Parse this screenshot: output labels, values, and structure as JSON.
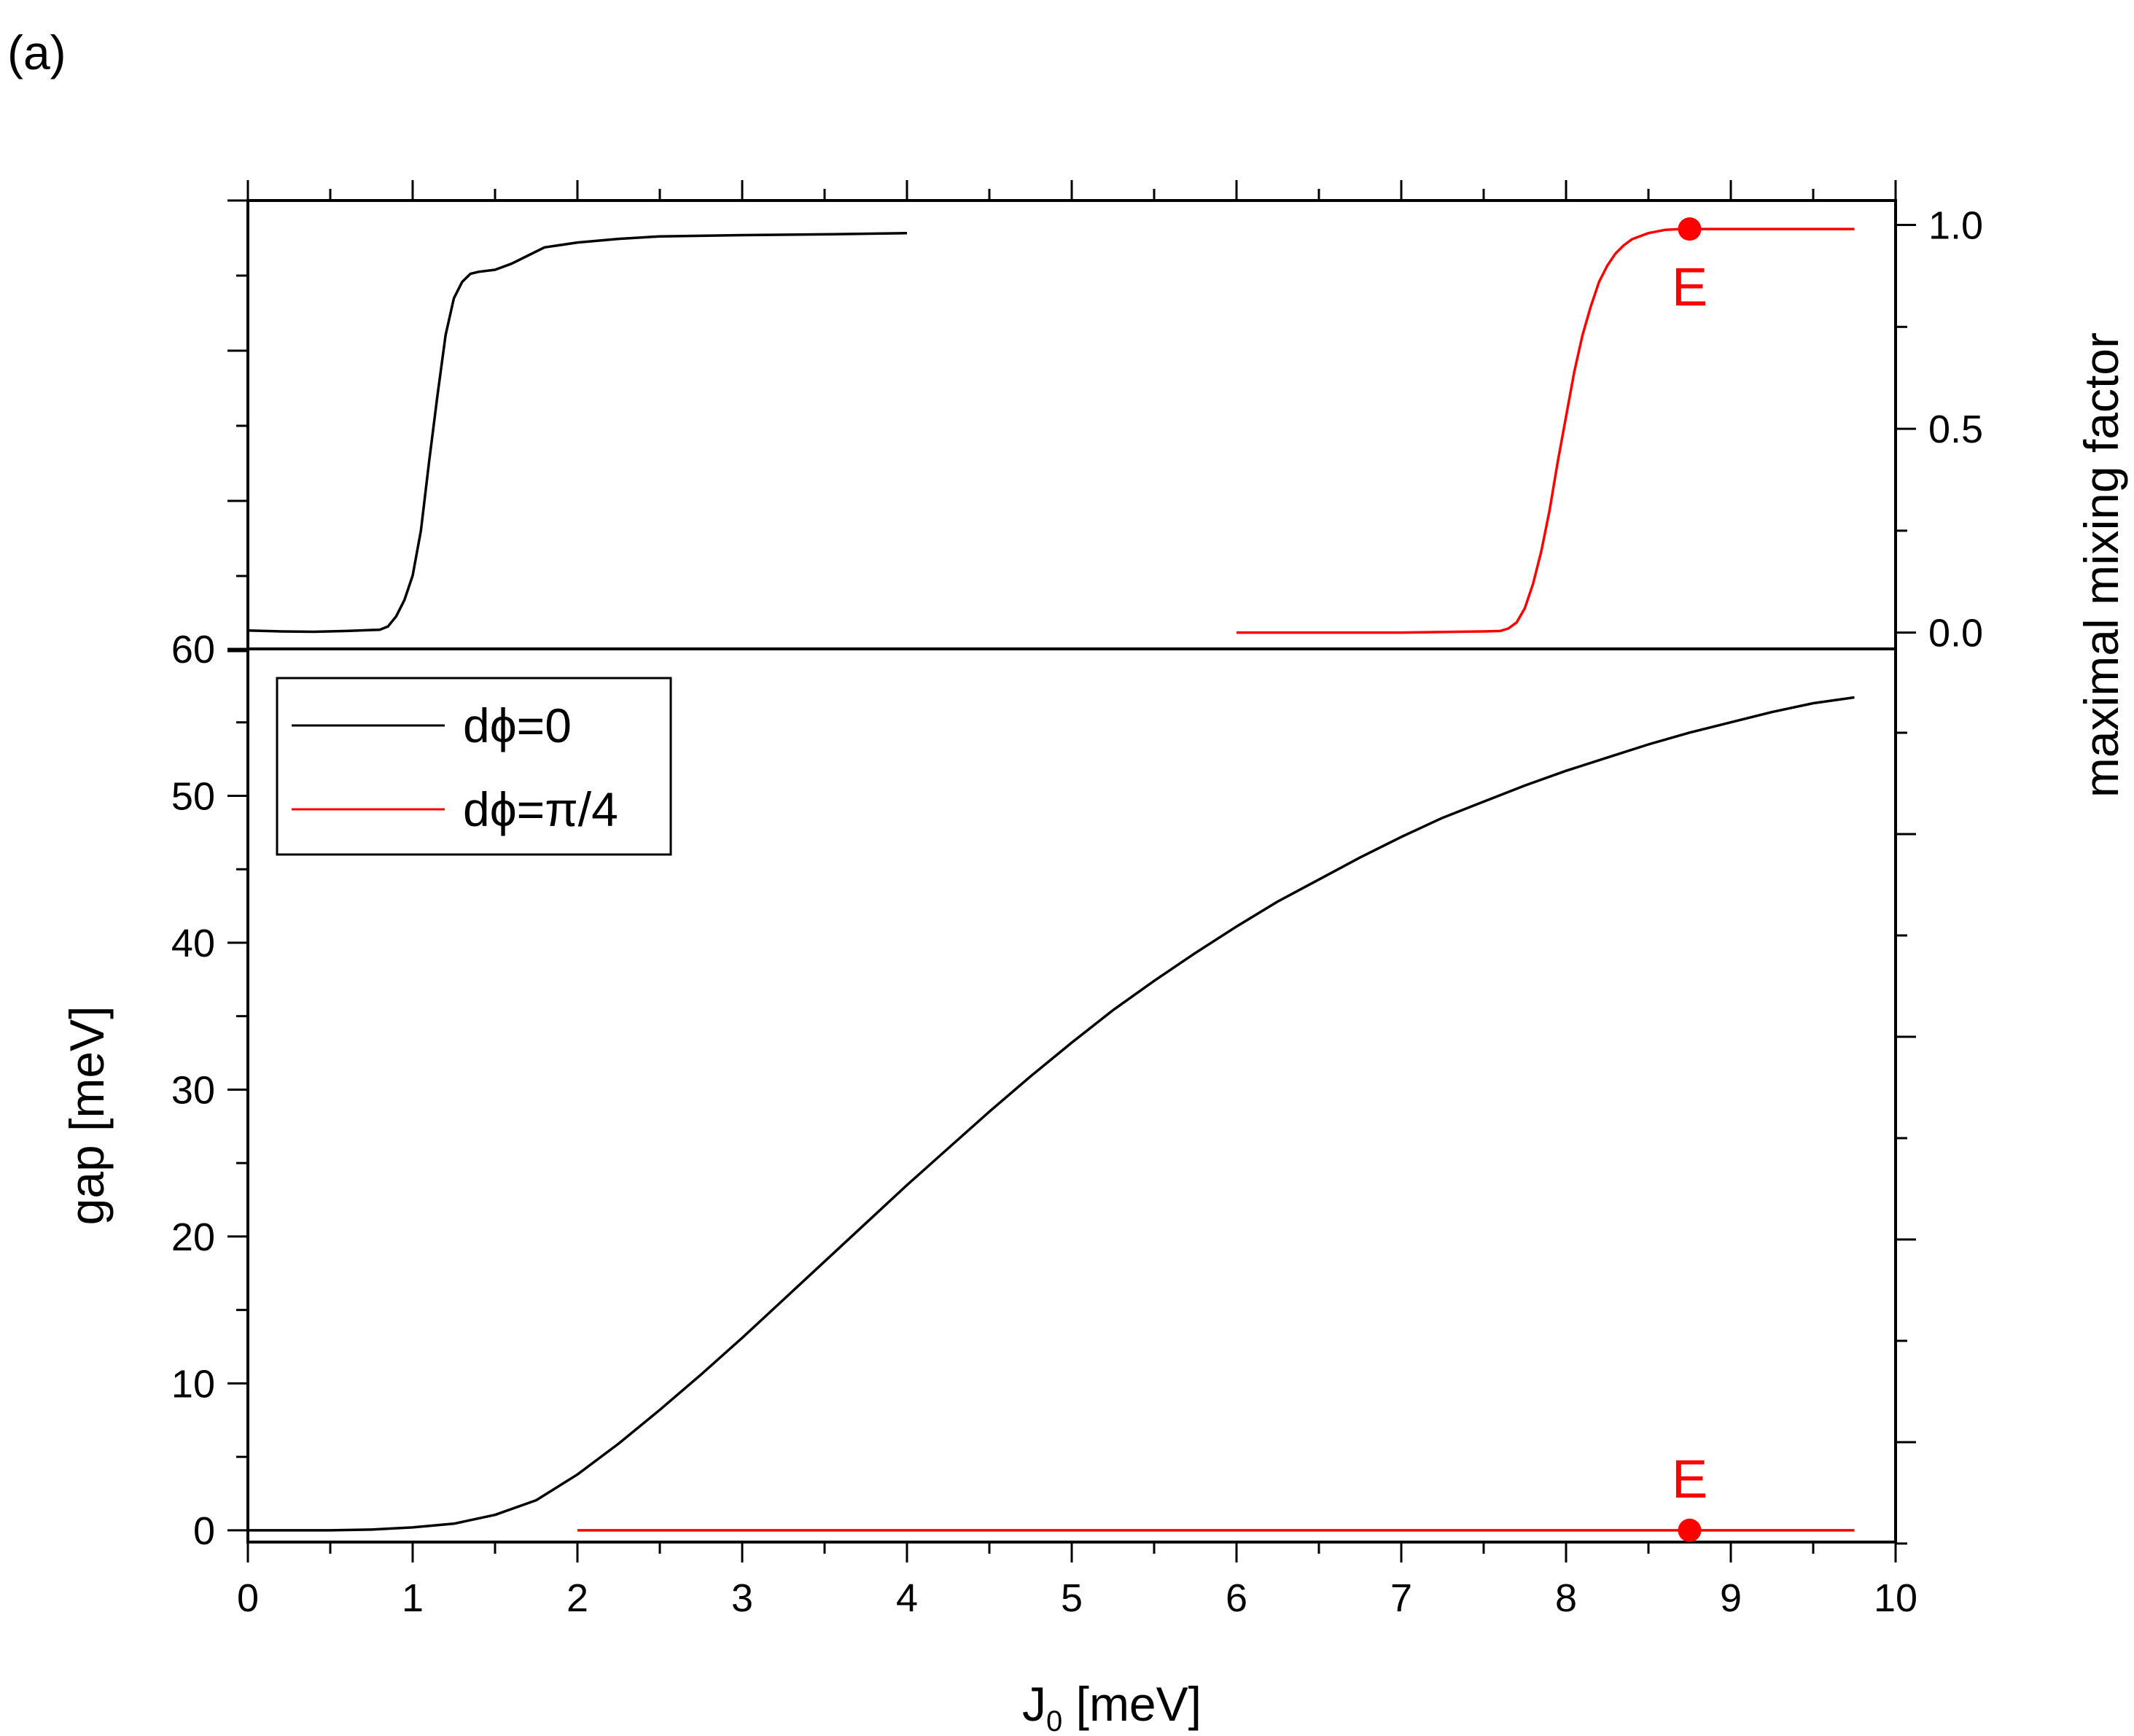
{
  "panel_label": "(a)",
  "colors": {
    "black": "#000000",
    "red": "#ff0000"
  },
  "chart_data": {
    "type": "line",
    "x_axis": {
      "label_main": "J",
      "label_sub": "0",
      "label_rest": " [meV]",
      "range": [
        0,
        10
      ],
      "ticks": [
        0,
        1,
        2,
        3,
        4,
        5,
        6,
        7,
        8,
        9,
        10
      ],
      "tick_labels": [
        "0",
        "1",
        "2",
        "3",
        "4",
        "5",
        "6",
        "7",
        "8",
        "9",
        "10"
      ]
    },
    "left_axis": {
      "label": "gap [meV]",
      "range": [
        -0.8,
        60
      ],
      "ticks": [
        0,
        10,
        20,
        30,
        40,
        50,
        60
      ],
      "tick_labels": [
        "0",
        "10",
        "20",
        "30",
        "40",
        "50",
        "60"
      ]
    },
    "right_axis": {
      "label": "maximal mixing factor",
      "range": [
        -0.04,
        1.06
      ],
      "ticks": [
        0.0,
        0.5,
        1.0
      ],
      "tick_labels": [
        "0.0",
        "0.5",
        "1.0"
      ]
    },
    "legend": {
      "position": "top-left",
      "entries": [
        {
          "label": "dϕ=0",
          "color": "#000000"
        },
        {
          "label": "dϕ=π/4",
          "color": "#ff0000"
        }
      ]
    },
    "series": [
      {
        "label": "dϕ=0",
        "panel": "bottom",
        "color": "#000000",
        "x": [
          0,
          0.25,
          0.5,
          0.75,
          1.0,
          1.25,
          1.5,
          1.75,
          2.0,
          2.25,
          2.5,
          2.75,
          3.0,
          3.25,
          3.5,
          3.75,
          4.0,
          4.25,
          4.5,
          4.75,
          5.0,
          5.25,
          5.5,
          5.75,
          6.0,
          6.25,
          6.5,
          6.75,
          7.0,
          7.25,
          7.5,
          7.75,
          8.0,
          8.25,
          8.5,
          8.75,
          9.0,
          9.25,
          9.5,
          9.75
        ],
        "y": [
          0.0,
          0.0,
          0.0,
          0.05,
          0.2,
          0.45,
          1.05,
          2.05,
          3.8,
          5.9,
          8.2,
          10.6,
          13.1,
          15.7,
          18.3,
          20.9,
          23.5,
          26.0,
          28.5,
          30.9,
          33.2,
          35.4,
          37.4,
          39.3,
          41.1,
          42.8,
          44.3,
          45.8,
          47.2,
          48.5,
          49.6,
          50.7,
          51.7,
          52.6,
          53.5,
          54.3,
          55.0,
          55.7,
          56.3,
          56.7
        ]
      },
      {
        "label": "dϕ=π/4",
        "panel": "bottom",
        "color": "#ff0000",
        "x": [
          2.0,
          9.75
        ],
        "y": [
          0.0,
          0.0
        ]
      },
      {
        "label": "dϕ=0",
        "panel": "top",
        "color": "#000000",
        "x": [
          0,
          0.2,
          0.4,
          0.6,
          0.8,
          0.85,
          0.9,
          0.95,
          1.0,
          1.05,
          1.1,
          1.15,
          1.2,
          1.25,
          1.3,
          1.35,
          1.4,
          1.5,
          1.6,
          1.7,
          1.8,
          2.0,
          2.25,
          2.5,
          3.0,
          3.5,
          4.0
        ],
        "y": [
          0.005,
          0.003,
          0.002,
          0.004,
          0.007,
          0.015,
          0.04,
          0.08,
          0.14,
          0.25,
          0.42,
          0.58,
          0.73,
          0.82,
          0.86,
          0.88,
          0.885,
          0.89,
          0.905,
          0.925,
          0.945,
          0.957,
          0.966,
          0.972,
          0.975,
          0.977,
          0.98
        ]
      },
      {
        "label": "dϕ=π/4",
        "panel": "top",
        "color": "#ff0000",
        "x": [
          6.0,
          6.5,
          7.0,
          7.5,
          7.6,
          7.65,
          7.7,
          7.75,
          7.8,
          7.85,
          7.9,
          7.95,
          8.0,
          8.05,
          8.1,
          8.15,
          8.2,
          8.25,
          8.3,
          8.35,
          8.4,
          8.5,
          8.6,
          8.7,
          8.8,
          9.0,
          9.25,
          9.5,
          9.75
        ],
        "y": [
          0.0,
          0.0,
          0.0,
          0.003,
          0.004,
          0.01,
          0.025,
          0.06,
          0.12,
          0.2,
          0.3,
          0.42,
          0.53,
          0.64,
          0.73,
          0.8,
          0.86,
          0.9,
          0.93,
          0.95,
          0.965,
          0.98,
          0.988,
          0.99,
          0.99,
          0.99,
          0.99,
          0.99,
          0.99
        ]
      }
    ],
    "annotations": [
      {
        "text": "E",
        "x": 8.75,
        "y": 0.99,
        "panel": "top",
        "color": "#ff0000"
      },
      {
        "text": "E",
        "x": 8.75,
        "y": 0.0,
        "panel": "bottom",
        "color": "#ff0000"
      }
    ]
  }
}
